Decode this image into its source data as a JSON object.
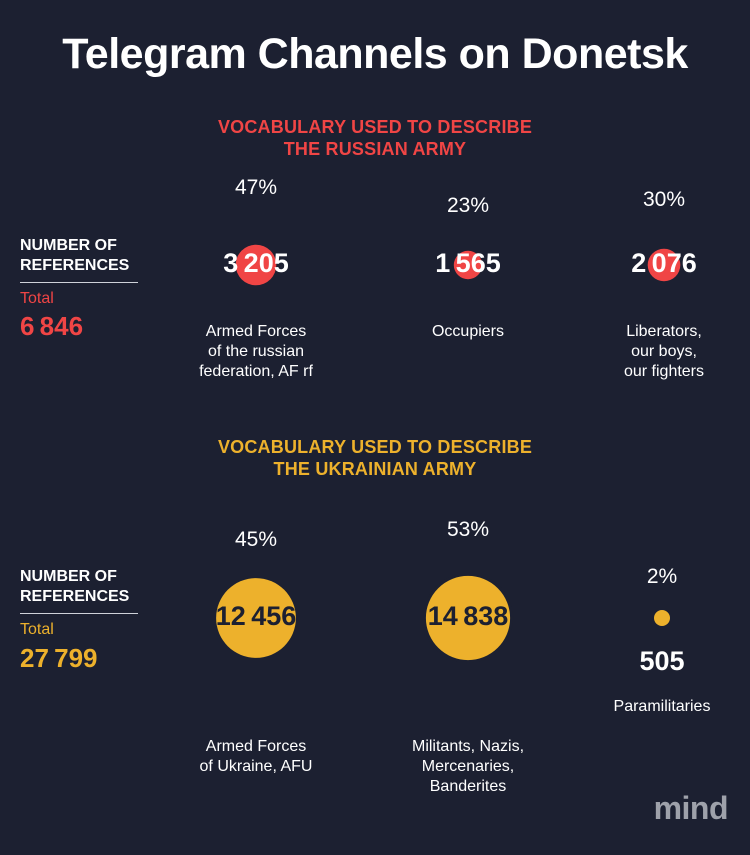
{
  "title": "Telegram Channels on Donetsk",
  "colors": {
    "background": "#1c2031",
    "russian": "#f04545",
    "ukrainian": "#edb12c",
    "dark_text": "#1c2031",
    "logo": "#9ea1aa"
  },
  "logo": "mind",
  "chart_data": [
    {
      "type": "bubble",
      "title": "VOCABULARY USED TO DESCRIBE\nTHE RUSSIAN ARMY",
      "side_label": "NUMBER OF\nREFERENCES",
      "total_label": "Total",
      "total_value": "6846",
      "categories": [
        "Armed Forces\nof the russian\nfederation, AF rf",
        "Occupiers",
        "Liberators,\nour boys,\nour fighters"
      ],
      "values": [
        3205,
        1565,
        2076
      ],
      "value_labels": [
        "3205",
        "1565",
        "2076"
      ],
      "percentages": [
        "47%",
        "23%",
        "30%"
      ]
    },
    {
      "type": "bubble",
      "title": "VOCABULARY USED TO DESCRIBE\nTHE UKRAINIAN ARMY",
      "side_label": "NUMBER OF\nREFERENCES",
      "total_label": "Total",
      "total_value": "27799",
      "categories": [
        "Armed Forces\nof Ukraine, AFU",
        "Militants, Nazis,\nMercenaries,\nBanderites",
        "Paramilitaries"
      ],
      "values": [
        12456,
        14838,
        505
      ],
      "value_labels": [
        "12456",
        "14838",
        "505"
      ],
      "percentages": [
        "45%",
        "53%",
        "2%"
      ]
    }
  ]
}
